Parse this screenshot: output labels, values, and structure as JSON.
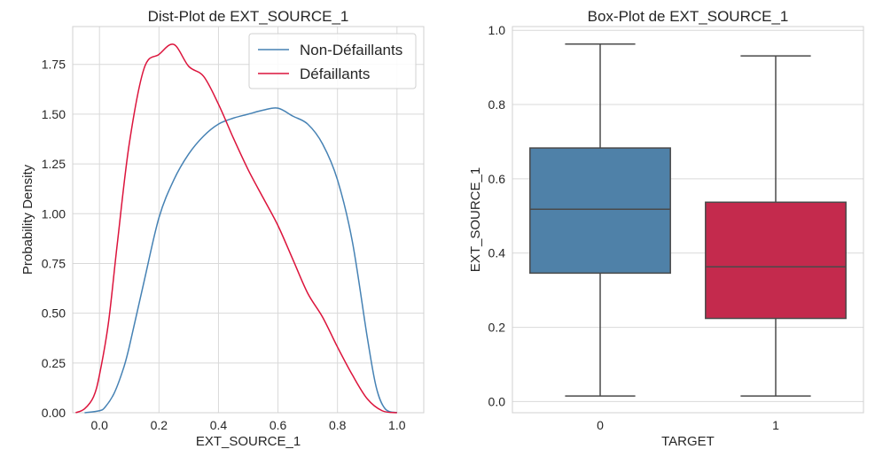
{
  "chart_data": [
    {
      "type": "line",
      "title": "Dist-Plot de EXT_SOURCE_1",
      "xlabel": "EXT_SOURCE_1",
      "ylabel": "Probability Density",
      "xlim": [
        -0.09,
        1.09
      ],
      "ylim": [
        0,
        1.94
      ],
      "xticks": [
        0.0,
        0.2,
        0.4,
        0.6,
        0.8,
        1.0
      ],
      "xtick_labels": [
        "0.0",
        "0.2",
        "0.4",
        "0.6",
        "0.8",
        "1.0"
      ],
      "yticks": [
        0,
        0.25,
        0.5,
        0.75,
        1.0,
        1.25,
        1.5,
        1.75
      ],
      "ytick_labels": [
        "0.00",
        "0.25",
        "0.50",
        "0.75",
        "1.00",
        "1.25",
        "1.50",
        "1.75"
      ],
      "grid": true,
      "legend_position": "top-right",
      "series": [
        {
          "name": "Non-Défaillants",
          "color": "#4682b4",
          "x": [
            -0.05,
            0.0,
            0.02,
            0.05,
            0.08,
            0.1,
            0.15,
            0.2,
            0.25,
            0.3,
            0.35,
            0.4,
            0.45,
            0.5,
            0.55,
            0.6,
            0.65,
            0.7,
            0.75,
            0.8,
            0.85,
            0.9,
            0.93,
            0.96,
            1.0
          ],
          "y": [
            0.0,
            0.01,
            0.03,
            0.1,
            0.22,
            0.33,
            0.66,
            0.98,
            1.17,
            1.3,
            1.39,
            1.45,
            1.48,
            1.5,
            1.52,
            1.53,
            1.49,
            1.45,
            1.35,
            1.17,
            0.86,
            0.38,
            0.13,
            0.02,
            0.0
          ]
        },
        {
          "name": "Défaillants",
          "color": "#dc143c",
          "x": [
            -0.08,
            -0.05,
            -0.02,
            0.0,
            0.03,
            0.06,
            0.1,
            0.15,
            0.2,
            0.25,
            0.3,
            0.35,
            0.4,
            0.45,
            0.5,
            0.55,
            0.6,
            0.65,
            0.7,
            0.75,
            0.8,
            0.85,
            0.9,
            0.95,
            1.0
          ],
          "y": [
            0.0,
            0.02,
            0.08,
            0.19,
            0.45,
            0.85,
            1.35,
            1.73,
            1.8,
            1.85,
            1.74,
            1.69,
            1.55,
            1.38,
            1.22,
            1.08,
            0.94,
            0.77,
            0.6,
            0.48,
            0.33,
            0.19,
            0.07,
            0.01,
            0.0
          ]
        }
      ]
    },
    {
      "type": "box",
      "title": "Box-Plot de EXT_SOURCE_1",
      "xlabel": "TARGET",
      "ylabel": "EXT_SOURCE_1",
      "categories": [
        "0",
        "1"
      ],
      "ylim": [
        -0.03,
        1.01
      ],
      "yticks": [
        0.0,
        0.2,
        0.4,
        0.6,
        0.8,
        1.0
      ],
      "ytick_labels": [
        "0.0",
        "0.2",
        "0.4",
        "0.6",
        "0.8",
        "1.0"
      ],
      "grid": true,
      "boxes": [
        {
          "category": "0",
          "color": "#4f81a8",
          "whisker_low": 0.015,
          "q1": 0.346,
          "median": 0.518,
          "q3": 0.683,
          "whisker_high": 0.963
        },
        {
          "category": "1",
          "color": "#c42a4d",
          "whisker_low": 0.015,
          "q1": 0.224,
          "median": 0.363,
          "q3": 0.537,
          "whisker_high": 0.931
        }
      ]
    }
  ]
}
